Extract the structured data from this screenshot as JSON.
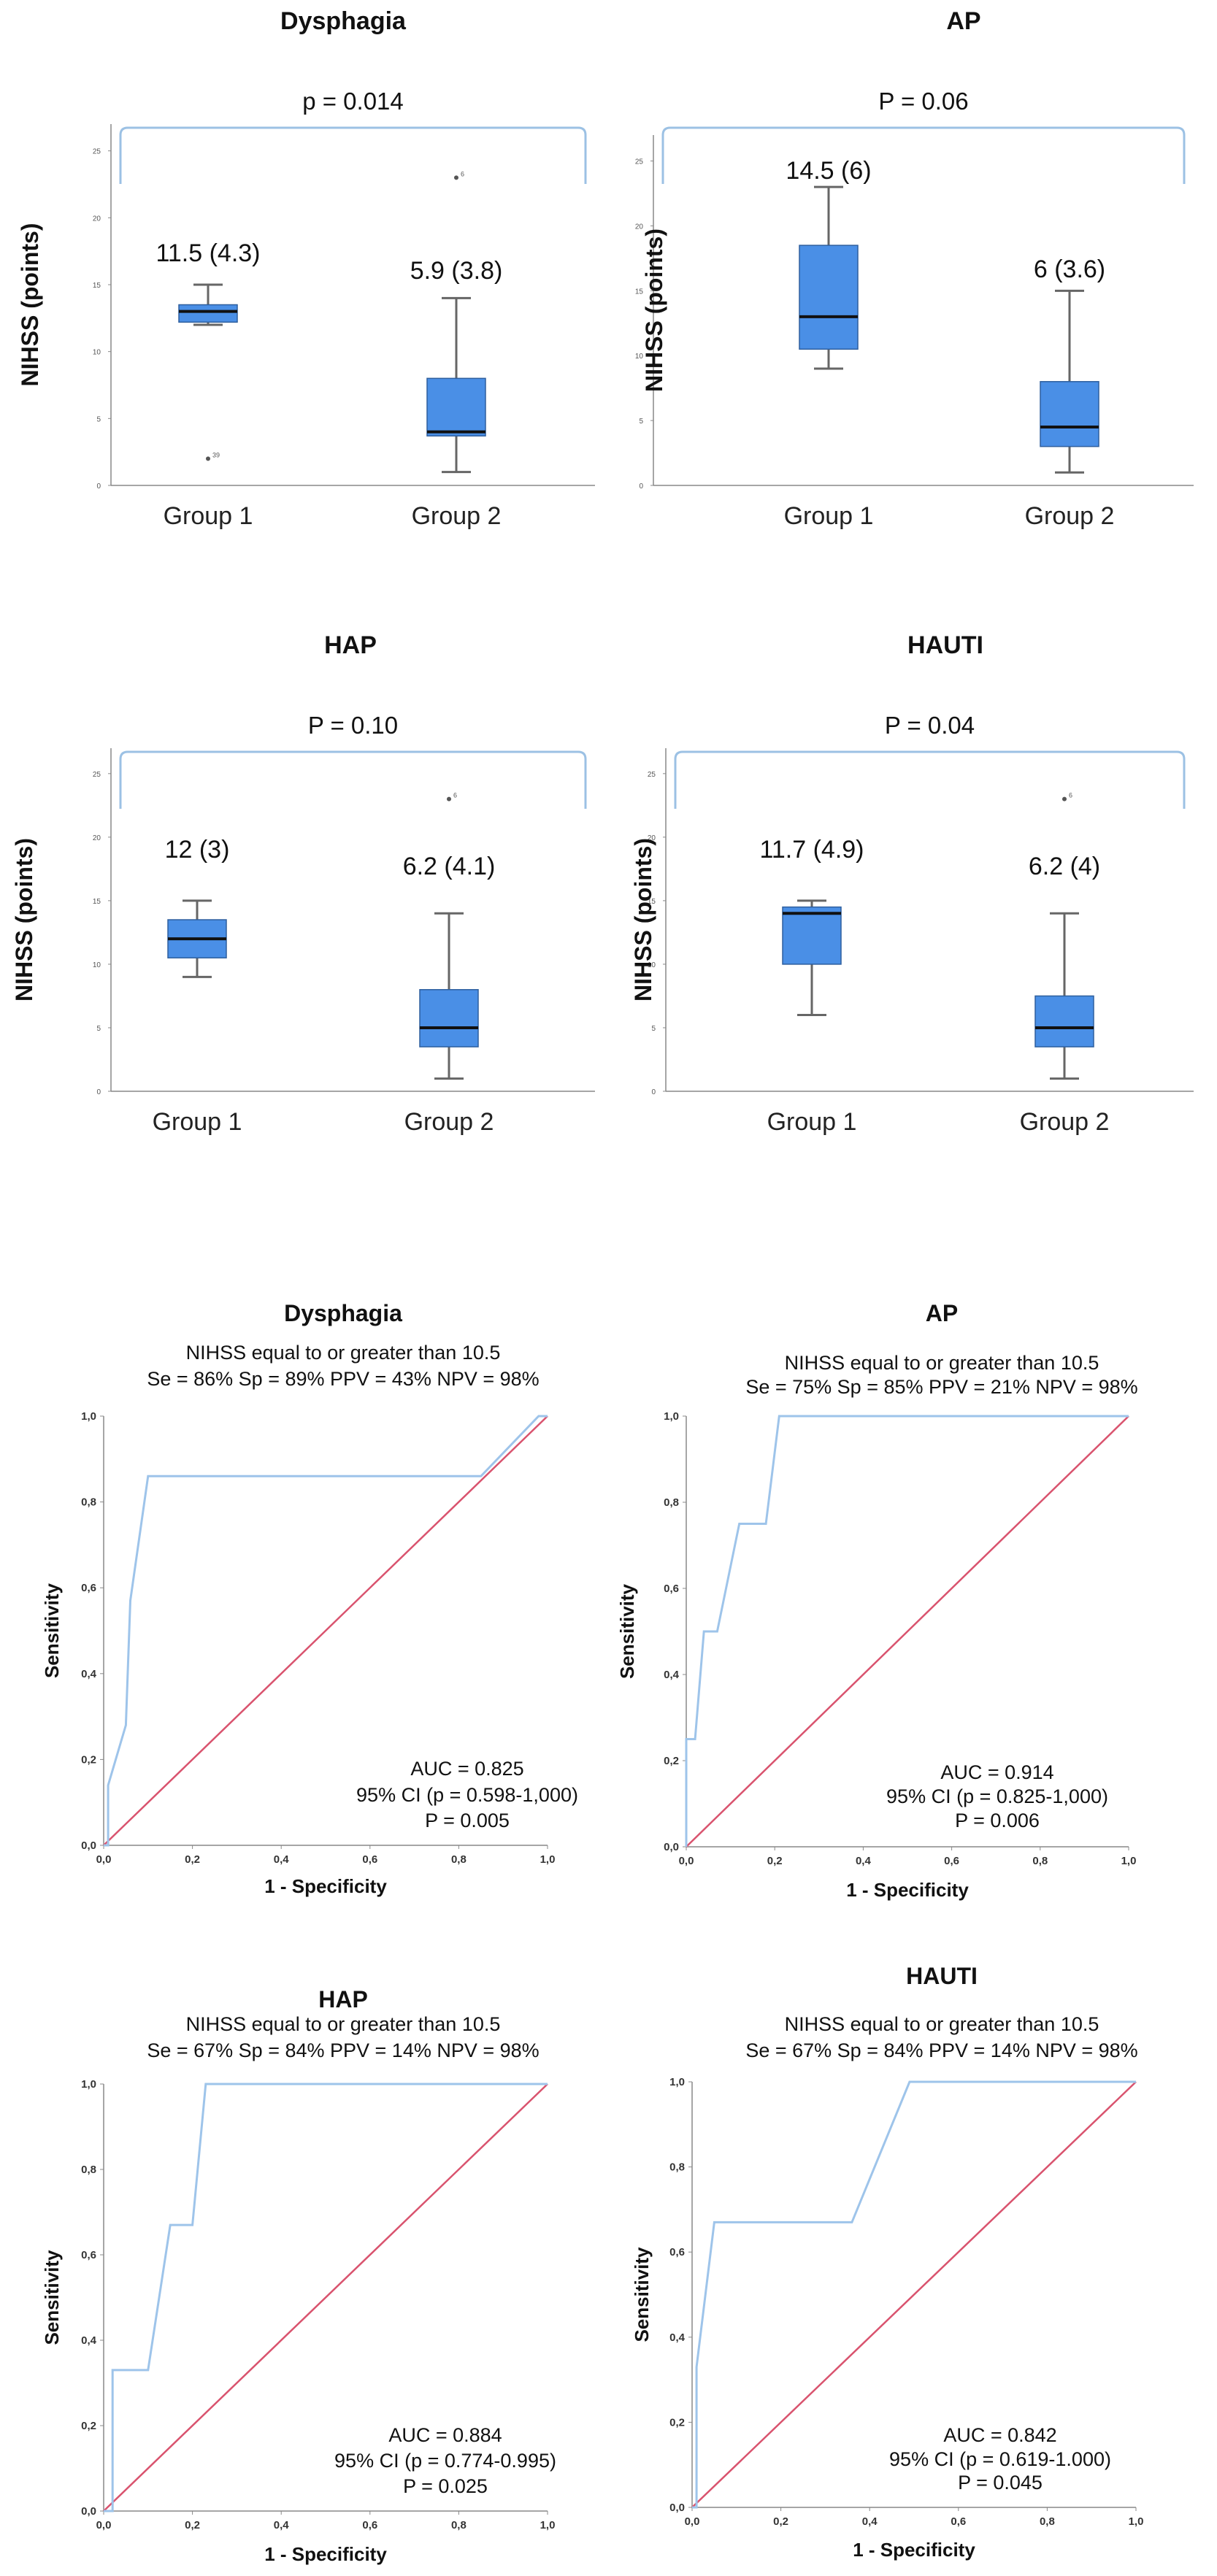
{
  "chart_data": [
    {
      "type": "box",
      "title": "Dysphagia",
      "p_label": "p = 0.014",
      "ylabel": "NIHSS (points)",
      "ylim": [
        0,
        27
      ],
      "yticks": [
        {
          "value": 0,
          "label": "0"
        },
        {
          "value": 5,
          "label": "5"
        },
        {
          "value": 10,
          "label": "10"
        },
        {
          "value": 15,
          "label": "15"
        },
        {
          "value": 20,
          "label": "20"
        },
        {
          "value": 25,
          "label": "25"
        }
      ],
      "categories": [
        "Group 1",
        "Group 2"
      ],
      "groups": [
        {
          "name": "Group 1",
          "label": "11.5 (4.3)",
          "min": 12,
          "q1": 12.2,
          "median": 13,
          "q3": 13.5,
          "max": 15,
          "outliers": [
            {
              "value": 2,
              "label": "39"
            }
          ]
        },
        {
          "name": "Group 2",
          "label": "5.9 (3.8)",
          "min": 1,
          "q1": 3.7,
          "median": 4,
          "q3": 8,
          "max": 14,
          "outliers": [
            {
              "value": 23,
              "label": "6"
            }
          ]
        }
      ]
    },
    {
      "type": "box",
      "title": "AP",
      "p_label": "P = 0.06",
      "ylabel": "NIHSS (points)",
      "ylim": [
        0,
        27
      ],
      "yticks": [
        {
          "value": 0,
          "label": "0"
        },
        {
          "value": 5,
          "label": "5"
        },
        {
          "value": 10,
          "label": "10"
        },
        {
          "value": 15,
          "label": "15"
        },
        {
          "value": 20,
          "label": "20"
        },
        {
          "value": 25,
          "label": "25"
        }
      ],
      "categories": [
        "Group 1",
        "Group 2"
      ],
      "groups": [
        {
          "name": "Group 1",
          "label": "14.5 (6)",
          "min": 9,
          "q1": 10.5,
          "median": 13,
          "q3": 18.5,
          "max": 23,
          "outliers": []
        },
        {
          "name": "Group 2",
          "label": "6 (3.6)",
          "min": 1,
          "q1": 3,
          "median": 4.5,
          "q3": 8,
          "max": 15,
          "outliers": []
        }
      ]
    },
    {
      "type": "box",
      "title": "HAP",
      "p_label": "P = 0.10",
      "ylabel": "NIHSS (points)",
      "ylim": [
        0,
        27
      ],
      "yticks": [
        {
          "value": 0,
          "label": "0"
        },
        {
          "value": 5,
          "label": "5"
        },
        {
          "value": 10,
          "label": "10"
        },
        {
          "value": 15,
          "label": "15"
        },
        {
          "value": 20,
          "label": "20"
        },
        {
          "value": 25,
          "label": "25"
        }
      ],
      "categories": [
        "Group 1",
        "Group 2"
      ],
      "groups": [
        {
          "name": "Group 1",
          "label": "12 (3)",
          "min": 9,
          "q1": 10.5,
          "median": 12,
          "q3": 13.5,
          "max": 15,
          "outliers": []
        },
        {
          "name": "Group 2",
          "label": "6.2 (4.1)",
          "min": 1,
          "q1": 3.5,
          "median": 5,
          "q3": 8,
          "max": 14,
          "outliers": [
            {
              "value": 23,
              "label": "6"
            }
          ]
        }
      ]
    },
    {
      "type": "box",
      "title": "HAUTI",
      "p_label": "P = 0.04",
      "ylabel": "NIHSS (points)",
      "ylim": [
        0,
        27
      ],
      "yticks": [
        {
          "value": 0,
          "label": "0"
        },
        {
          "value": 5,
          "label": "5"
        },
        {
          "value": 10,
          "label": "10"
        },
        {
          "value": 15,
          "label": "15"
        },
        {
          "value": 20,
          "label": "20"
        },
        {
          "value": 25,
          "label": "25"
        }
      ],
      "categories": [
        "Group 1",
        "Group 2"
      ],
      "groups": [
        {
          "name": "Group 1",
          "label": "11.7 (4.9)",
          "min": 6,
          "q1": 10,
          "median": 14,
          "q3": 14.5,
          "max": 15,
          "outliers": []
        },
        {
          "name": "Group 2",
          "label": "6.2 (4)",
          "min": 1,
          "q1": 3.5,
          "median": 5,
          "q3": 7.5,
          "max": 14,
          "outliers": [
            {
              "value": 23,
              "label": "6"
            }
          ]
        }
      ]
    },
    {
      "type": "line",
      "title": "Dysphagia",
      "subtitle1": "NIHSS equal to or greater than 10.5",
      "subtitle2": "Se = 86% Sp = 89% PPV = 43% NPV = 98%",
      "xlabel": "1 - Specificity",
      "ylabel": "Sensitivity",
      "xlim": [
        0,
        1
      ],
      "ylim": [
        0,
        1
      ],
      "ticks": [
        "0,0",
        "0,2",
        "0,4",
        "0,6",
        "0,8",
        "1,0"
      ],
      "stats": [
        "AUC = 0.825",
        "95% CI (p = 0.598-1,000)",
        "P = 0.005"
      ],
      "roc": [
        [
          0,
          0
        ],
        [
          0.01,
          0
        ],
        [
          0.01,
          0.14
        ],
        [
          0.05,
          0.28
        ],
        [
          0.06,
          0.57
        ],
        [
          0.1,
          0.86
        ],
        [
          0.85,
          0.86
        ],
        [
          0.98,
          1
        ],
        [
          1,
          1
        ]
      ],
      "reference": [
        [
          0,
          0
        ],
        [
          1,
          1
        ]
      ]
    },
    {
      "type": "line",
      "title": "AP",
      "subtitle1": "NIHSS equal to or greater than 10.5",
      "subtitle2": "Se = 75% Sp = 85% PPV = 21% NPV = 98%",
      "xlabel": "1 - Specificity",
      "ylabel": "Sensitivity",
      "xlim": [
        0,
        1
      ],
      "ylim": [
        0,
        1
      ],
      "ticks": [
        "0,0",
        "0,2",
        "0,4",
        "0,6",
        "0,8",
        "1,0"
      ],
      "stats": [
        "AUC = 0.914",
        "95% CI (p = 0.825-1,000)",
        "P = 0.006"
      ],
      "roc": [
        [
          0,
          0
        ],
        [
          0,
          0.25
        ],
        [
          0.02,
          0.25
        ],
        [
          0.04,
          0.5
        ],
        [
          0.07,
          0.5
        ],
        [
          0.12,
          0.75
        ],
        [
          0.18,
          0.75
        ],
        [
          0.21,
          1
        ],
        [
          1,
          1
        ]
      ],
      "reference": [
        [
          0,
          0
        ],
        [
          1,
          1
        ]
      ]
    },
    {
      "type": "line",
      "title": "HAP",
      "subtitle1": "NIHSS equal to or greater than 10.5",
      "subtitle2": "Se = 67% Sp = 84% PPV = 14% NPV = 98%",
      "xlabel": "1 - Specificity",
      "ylabel": "Sensitivity",
      "xlim": [
        0,
        1
      ],
      "ylim": [
        0,
        1
      ],
      "ticks": [
        "0,0",
        "0,2",
        "0,4",
        "0,6",
        "0,8",
        "1,0"
      ],
      "stats": [
        "AUC = 0.884",
        "95% CI (p = 0.774-0.995)",
        "P = 0.025"
      ],
      "roc": [
        [
          0,
          0
        ],
        [
          0.02,
          0
        ],
        [
          0.02,
          0.33
        ],
        [
          0.1,
          0.33
        ],
        [
          0.15,
          0.67
        ],
        [
          0.2,
          0.67
        ],
        [
          0.23,
          1
        ],
        [
          1,
          1
        ]
      ],
      "reference": [
        [
          0,
          0
        ],
        [
          1,
          1
        ]
      ]
    },
    {
      "type": "line",
      "title": "HAUTI",
      "subtitle1": "NIHSS equal to or greater than 10.5",
      "subtitle2": "Se = 67% Sp = 84% PPV = 14% NPV = 98%",
      "xlabel": "1 - Specificity",
      "ylabel": "Sensitivity",
      "xlim": [
        0,
        1
      ],
      "ylim": [
        0,
        1
      ],
      "ticks": [
        "0,0",
        "0,2",
        "0,4",
        "0,6",
        "0,8",
        "1,0"
      ],
      "stats": [
        "AUC = 0.842",
        "95% CI (p = 0.619-1.000)",
        "P = 0.045"
      ],
      "roc": [
        [
          0,
          0
        ],
        [
          0.01,
          0
        ],
        [
          0.01,
          0.33
        ],
        [
          0.05,
          0.67
        ],
        [
          0.36,
          0.67
        ],
        [
          0.49,
          1
        ],
        [
          1,
          1
        ]
      ],
      "reference": [
        [
          0,
          0
        ],
        [
          1,
          1
        ]
      ]
    }
  ],
  "colors": {
    "box_fill": "#4a8fe6",
    "box_edge": "#2e5f9e",
    "median": "#111111",
    "whisker": "#666666",
    "bracket": "#9cc1e4",
    "roc_curve": "#9ec4ea",
    "reference": "#d9536e",
    "axis": "#888888"
  }
}
